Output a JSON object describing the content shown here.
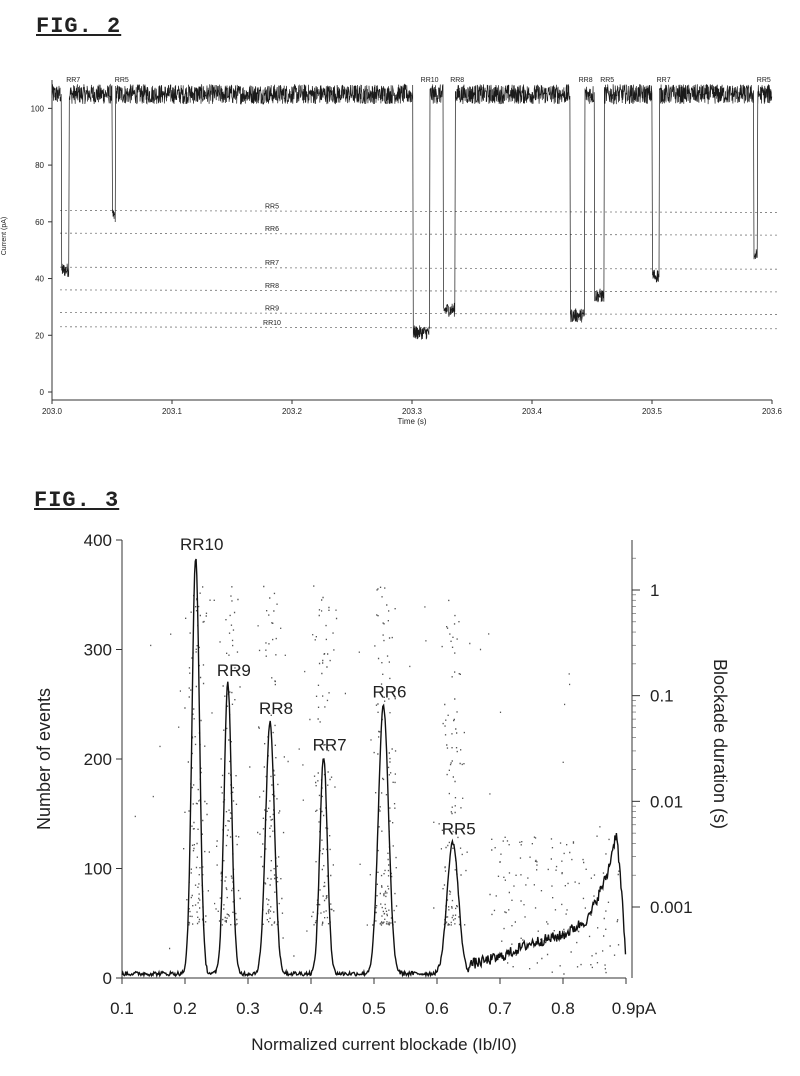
{
  "figures": {
    "fig2_label": "FIG. 2",
    "fig3_label": "FIG. 3"
  },
  "chart_data": [
    {
      "type": "line",
      "figure": "FIG. 2",
      "xlabel": "Time (s)",
      "ylabel": "Current (pA)",
      "xlim": [
        203.0,
        203.6
      ],
      "ylim": [
        0,
        110
      ],
      "x_ticks": [
        "203.0",
        "203.1",
        "203.2",
        "203.3",
        "203.4",
        "203.5",
        "203.6"
      ],
      "y_ticks": [
        "0",
        "20",
        "40",
        "60",
        "80",
        "100"
      ],
      "baseline_current": 105,
      "events": [
        {
          "label": "RR7",
          "start": 203.008,
          "end": 203.014,
          "level": 43
        },
        {
          "label": "RR5",
          "start": 203.05,
          "end": 203.053,
          "level": 62
        },
        {
          "label": "RR10",
          "start": 203.301,
          "end": 203.315,
          "level": 21
        },
        {
          "label": "RR8",
          "start": 203.326,
          "end": 203.336,
          "level": 29
        },
        {
          "label": "RR8",
          "start": 203.432,
          "end": 203.444,
          "level": 27
        },
        {
          "label": "RR5",
          "start": 203.452,
          "end": 203.46,
          "level": 34
        },
        {
          "label": "RR7",
          "start": 203.5,
          "end": 203.506,
          "level": 41
        },
        {
          "label": "RR5",
          "start": 203.585,
          "end": 203.588,
          "level": 48
        }
      ],
      "reference_levels": [
        {
          "label": "RR5",
          "value": 64
        },
        {
          "label": "RR6",
          "value": 56
        },
        {
          "label": "RR7",
          "value": 44
        },
        {
          "label": "RR8",
          "value": 36
        },
        {
          "label": "RR9",
          "value": 28
        },
        {
          "label": "RR10",
          "value": 23
        }
      ]
    },
    {
      "type": "line",
      "figure": "FIG. 3",
      "xlabel": "Normalized current blockade (Ib/I0)",
      "ylabel": "Number of events",
      "y2label": "Blockade duration (s)",
      "xlim": [
        0.1,
        0.9
      ],
      "ylim": [
        0,
        400
      ],
      "y2_scale": "log",
      "x_ticks": [
        "0.1",
        "0.2",
        "0.3",
        "0.4",
        "0.5",
        "0.6",
        "0.7",
        "0.8",
        "0.9pA"
      ],
      "y_ticks": [
        "0",
        "100",
        "200",
        "300",
        "400"
      ],
      "y2_ticks": [
        "0.001",
        "0.01",
        "0.1",
        "1"
      ],
      "y2_tick_values": [
        0.001,
        0.01,
        0.1,
        1
      ],
      "peaks": [
        {
          "label": "RR10",
          "x": 0.217,
          "y": 380
        },
        {
          "label": "RR9",
          "x": 0.268,
          "y": 265
        },
        {
          "label": "RR8",
          "x": 0.335,
          "y": 230
        },
        {
          "label": "RR7",
          "x": 0.42,
          "y": 197
        },
        {
          "label": "RR6",
          "x": 0.515,
          "y": 245
        },
        {
          "label": "RR5",
          "x": 0.625,
          "y": 120
        }
      ],
      "tail": [
        [
          0.65,
          8
        ],
        [
          0.7,
          15
        ],
        [
          0.75,
          28
        ],
        [
          0.8,
          35
        ],
        [
          0.84,
          50
        ],
        [
          0.87,
          90
        ],
        [
          0.885,
          130
        ],
        [
          0.895,
          60
        ],
        [
          0.9,
          5
        ]
      ]
    }
  ]
}
